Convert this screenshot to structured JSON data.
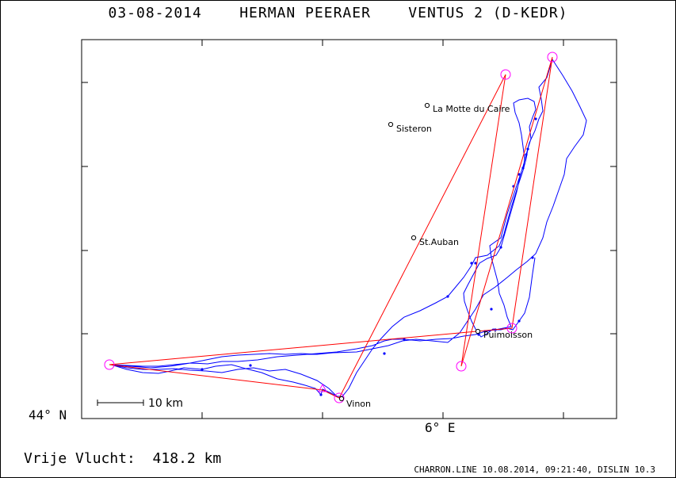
{
  "header": {
    "title": "03-08-2014    HERMAN PEERAER    VENTUS 2 (D-KEDR)"
  },
  "map": {
    "lat_label": "44° N",
    "lon_label": "6° E",
    "scale_label": "10 km",
    "towns": [
      {
        "name": "La Motte du Caire"
      },
      {
        "name": "Sisteron"
      },
      {
        "name": "St.Auban"
      },
      {
        "name": "Puimoisson"
      },
      {
        "name": "Vinon"
      }
    ],
    "colors": {
      "track": "#0000ff",
      "task": "#ff0000",
      "turnpoint": "#ff00ff",
      "frame": "#000000"
    }
  },
  "footer": {
    "distance_text": "Vrije Vlucht:  418.2 km",
    "credit": "CHARRON.LINE 10.08.2014, 09:21:40, DISLIN 10.3"
  }
}
